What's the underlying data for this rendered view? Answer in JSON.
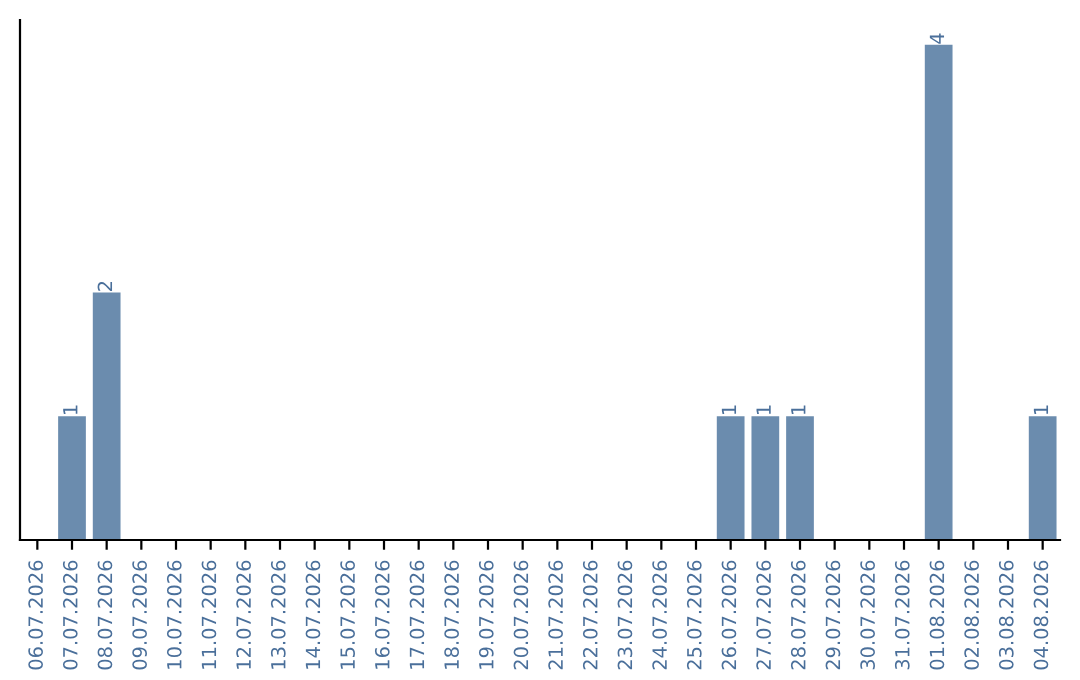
{
  "chart_data": {
    "type": "bar",
    "categories": [
      "06.07.2026",
      "07.07.2026",
      "08.07.2026",
      "09.07.2026",
      "10.07.2026",
      "11.07.2026",
      "12.07.2026",
      "13.07.2026",
      "14.07.2026",
      "15.07.2026",
      "16.07.2026",
      "17.07.2026",
      "18.07.2026",
      "19.07.2026",
      "20.07.2026",
      "21.07.2026",
      "22.07.2026",
      "23.07.2026",
      "24.07.2026",
      "25.07.2026",
      "26.07.2026",
      "27.07.2026",
      "28.07.2026",
      "29.07.2026",
      "30.07.2026",
      "31.07.2026",
      "01.08.2026",
      "02.08.2026",
      "03.08.2026",
      "04.08.2026"
    ],
    "values": [
      0,
      1,
      2,
      0,
      0,
      0,
      0,
      0,
      0,
      0,
      0,
      0,
      0,
      0,
      0,
      0,
      0,
      0,
      0,
      0,
      1,
      1,
      1,
      0,
      0,
      0,
      4,
      0,
      0,
      1
    ],
    "value_labels": [
      null,
      "1",
      "2",
      null,
      null,
      null,
      null,
      null,
      null,
      null,
      null,
      null,
      null,
      null,
      null,
      null,
      null,
      null,
      null,
      null,
      "1",
      "1",
      "1",
      null,
      null,
      null,
      "4",
      null,
      null,
      "1"
    ],
    "color": "#6b8cae",
    "grid": false,
    "legend": false
  }
}
